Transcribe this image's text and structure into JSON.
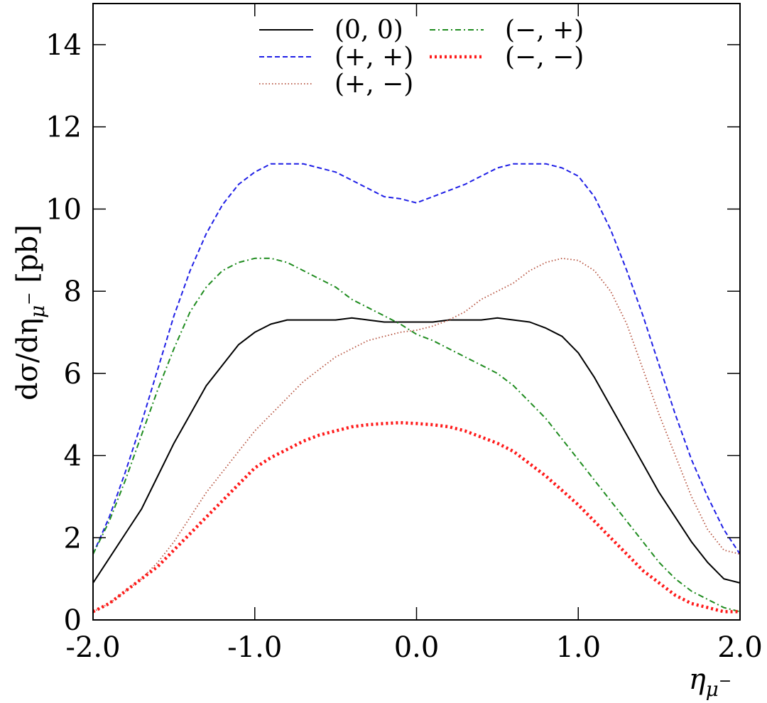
{
  "chart_data": {
    "type": "line",
    "xlabel": "η_{μ⁻}",
    "ylabel": "dσ/dη_{μ⁻} [pb]",
    "xlim": [
      -2.0,
      2.0
    ],
    "ylim": [
      0,
      15
    ],
    "x_ticks": [
      -2.0,
      -1.0,
      0.0,
      1.0,
      2.0
    ],
    "x_tick_labels": [
      "-2.0",
      "-1.0",
      "0.0",
      "1.0",
      "2.0"
    ],
    "y_ticks": [
      0,
      2,
      4,
      6,
      8,
      10,
      12,
      14
    ],
    "y_tick_labels": [
      "0",
      "2",
      "4",
      "6",
      "8",
      "10",
      "12",
      "14"
    ],
    "grid": false,
    "legend_position": "top-center",
    "x": [
      -2.0,
      -1.9,
      -1.8,
      -1.7,
      -1.6,
      -1.5,
      -1.4,
      -1.3,
      -1.2,
      -1.1,
      -1.0,
      -0.9,
      -0.8,
      -0.7,
      -0.6,
      -0.5,
      -0.4,
      -0.3,
      -0.2,
      -0.1,
      0.0,
      0.1,
      0.2,
      0.3,
      0.4,
      0.5,
      0.6,
      0.7,
      0.8,
      0.9,
      1.0,
      1.1,
      1.2,
      1.3,
      1.4,
      1.5,
      1.6,
      1.7,
      1.8,
      1.9,
      2.0
    ],
    "series": [
      {
        "name": "(0, 0)",
        "color": "#000000",
        "dash": "solid",
        "values": [
          0.9,
          1.5,
          2.1,
          2.7,
          3.5,
          4.3,
          5.0,
          5.7,
          6.2,
          6.7,
          7.0,
          7.2,
          7.3,
          7.3,
          7.3,
          7.3,
          7.35,
          7.3,
          7.25,
          7.25,
          7.25,
          7.25,
          7.3,
          7.3,
          7.3,
          7.35,
          7.3,
          7.25,
          7.1,
          6.9,
          6.5,
          5.9,
          5.2,
          4.5,
          3.8,
          3.1,
          2.5,
          1.9,
          1.4,
          1.0,
          0.9
        ]
      },
      {
        "name": "(+, +)",
        "color": "#1f1fe6",
        "dash": "dashed",
        "values": [
          1.6,
          2.5,
          3.6,
          4.8,
          6.1,
          7.4,
          8.5,
          9.4,
          10.1,
          10.6,
          10.9,
          11.1,
          11.1,
          11.1,
          11.0,
          10.9,
          10.7,
          10.5,
          10.3,
          10.25,
          10.15,
          10.3,
          10.45,
          10.6,
          10.8,
          11.0,
          11.1,
          11.1,
          11.1,
          11.0,
          10.8,
          10.3,
          9.5,
          8.5,
          7.4,
          6.2,
          5.0,
          3.9,
          3.0,
          2.2,
          1.6
        ]
      },
      {
        "name": "(+, −)",
        "color": "#b5503c",
        "dash": "dotted",
        "values": [
          0.2,
          0.4,
          0.7,
          1.0,
          1.4,
          1.9,
          2.5,
          3.1,
          3.6,
          4.1,
          4.6,
          5.0,
          5.4,
          5.8,
          6.1,
          6.4,
          6.6,
          6.8,
          6.9,
          7.0,
          7.05,
          7.15,
          7.3,
          7.5,
          7.8,
          8.0,
          8.2,
          8.5,
          8.7,
          8.8,
          8.75,
          8.5,
          8.0,
          7.2,
          6.1,
          5.0,
          4.0,
          3.0,
          2.2,
          1.7,
          1.6
        ]
      },
      {
        "name": "(−, +)",
        "color": "#1f8c1f",
        "dash": "dashdot",
        "values": [
          1.6,
          2.4,
          3.4,
          4.5,
          5.6,
          6.6,
          7.5,
          8.1,
          8.5,
          8.7,
          8.8,
          8.8,
          8.7,
          8.5,
          8.3,
          8.1,
          7.8,
          7.6,
          7.4,
          7.2,
          6.95,
          6.8,
          6.6,
          6.4,
          6.2,
          6.0,
          5.7,
          5.3,
          4.9,
          4.4,
          3.9,
          3.4,
          2.9,
          2.4,
          1.9,
          1.4,
          1.0,
          0.7,
          0.5,
          0.3,
          0.2
        ]
      },
      {
        "name": "(−, −)",
        "color": "#ff1a1a",
        "dash": "dotted-thick",
        "values": [
          0.2,
          0.4,
          0.7,
          1.0,
          1.3,
          1.7,
          2.1,
          2.5,
          2.9,
          3.3,
          3.7,
          3.95,
          4.15,
          4.35,
          4.5,
          4.6,
          4.7,
          4.75,
          4.78,
          4.8,
          4.78,
          4.75,
          4.7,
          4.6,
          4.45,
          4.3,
          4.1,
          3.8,
          3.5,
          3.15,
          2.8,
          2.4,
          2.0,
          1.6,
          1.2,
          0.9,
          0.6,
          0.4,
          0.3,
          0.2,
          0.2
        ]
      }
    ]
  }
}
